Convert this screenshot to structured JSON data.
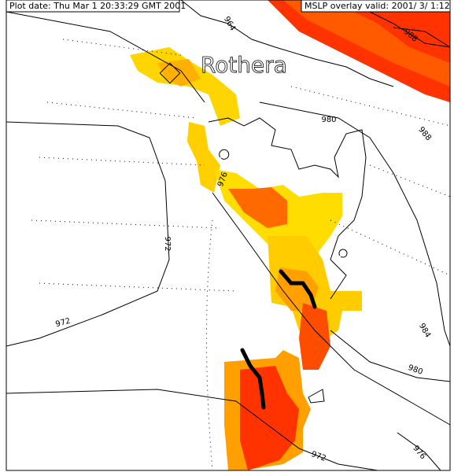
{
  "header": {
    "plot_date": "Plot date: Thu Mar  1 20:33:29 GMT 2001",
    "overlay": "MSLP overlay valid: 2001/ 3/  1:12"
  },
  "map": {
    "place": "Rothera",
    "contour_labels": [
      "964",
      "988",
      "980",
      "988",
      "976",
      "972",
      "972",
      "984",
      "980",
      "976",
      "972"
    ]
  }
}
